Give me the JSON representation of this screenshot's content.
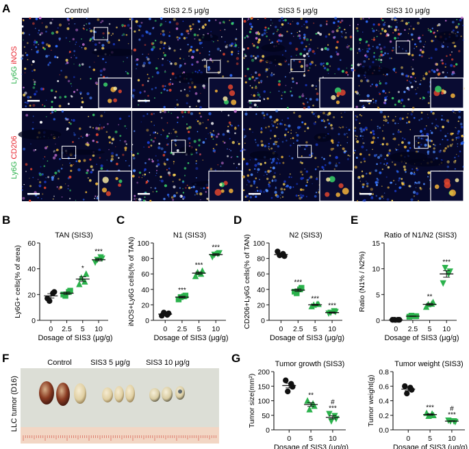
{
  "panel_letters": [
    "A",
    "B",
    "C",
    "D",
    "E",
    "F",
    "G"
  ],
  "panel_a": {
    "conditions": [
      "Control",
      "SIS3 2.5 μg/g",
      "SIS3 5 μg/g",
      "SIS3 10 μg/g"
    ],
    "rows": [
      {
        "stain_a": "Ly6G",
        "stain_b": "iNOS",
        "color_a": "#2bb24c",
        "color_b": "#e8202a"
      },
      {
        "stain_a": "Ly6G",
        "stain_b": "CD206",
        "color_a": "#2bb24c",
        "color_b": "#e8202a"
      }
    ]
  },
  "panel_f": {
    "labels": [
      "Control",
      "SIS3 5 μg/g",
      "SIS3 10 μg/g"
    ],
    "side_label": "LLC tumor (D16)"
  },
  "chart_data": [
    {
      "id": "B",
      "type": "scatter",
      "title": "TAN (SIS3)",
      "ylabel": "Ly6G+ cells(% of area)",
      "xlabel": "Dosage of SIS3 (μg/g)",
      "categories": [
        "0",
        "2.5",
        "5",
        "10"
      ],
      "ylim": [
        0,
        60
      ],
      "yticks": [
        "0",
        "20",
        "40",
        "60"
      ],
      "means": [
        19,
        21,
        32,
        47
      ],
      "points": [
        [
          17,
          22,
          15,
          21
        ],
        [
          20,
          23,
          19,
          22
        ],
        [
          28,
          36,
          33,
          30
        ],
        [
          45,
          48,
          47,
          49
        ]
      ],
      "significance": [
        "",
        "",
        "*",
        "***"
      ],
      "colors": [
        "#111111",
        "#2bb24c",
        "#2bb24c",
        "#2bb24c"
      ],
      "markers": [
        "circle",
        "square",
        "triangle",
        "triangle-down"
      ]
    },
    {
      "id": "C",
      "type": "scatter",
      "title": "N1 (SIS3)",
      "ylabel": "iNOS+Ly6G cells(% of TAN)",
      "xlabel": "Dosage of SIS3 (μg/g)",
      "categories": [
        "0",
        "2.5",
        "5",
        "10"
      ],
      "ylim": [
        0,
        100
      ],
      "yticks": [
        "0",
        "20",
        "40",
        "60",
        "80",
        "100"
      ],
      "means": [
        8,
        30,
        61,
        85
      ],
      "points": [
        [
          6,
          9,
          10,
          7
        ],
        [
          27,
          32,
          30,
          31
        ],
        [
          57,
          64,
          62,
          60
        ],
        [
          82,
          87,
          85,
          86
        ]
      ],
      "significance": [
        "",
        "***",
        "***",
        "***"
      ],
      "colors": [
        "#111111",
        "#2bb24c",
        "#2bb24c",
        "#2bb24c"
      ],
      "markers": [
        "circle",
        "square",
        "triangle",
        "triangle-down"
      ]
    },
    {
      "id": "D",
      "type": "scatter",
      "title": "N2 (SIS3)",
      "ylabel": "CD206+Ly6G cells(% of TAN)",
      "xlabel": "Dosage of SIS3 (μg/g)",
      "categories": [
        "0",
        "2.5",
        "5",
        "10"
      ],
      "ylim": [
        0,
        100
      ],
      "yticks": [
        "0",
        "20",
        "40",
        "60",
        "80",
        "100"
      ],
      "means": [
        85,
        39,
        20,
        10
      ],
      "points": [
        [
          89,
          83,
          84,
          86
        ],
        [
          37,
          42,
          35,
          40
        ],
        [
          18,
          21,
          20,
          21
        ],
        [
          9,
          11,
          10,
          12
        ]
      ],
      "significance": [
        "",
        "***",
        "***",
        "***"
      ],
      "colors": [
        "#111111",
        "#2bb24c",
        "#2bb24c",
        "#2bb24c"
      ],
      "markers": [
        "circle",
        "square",
        "triangle",
        "triangle-down"
      ]
    },
    {
      "id": "E",
      "type": "scatter",
      "title": "Ratio of N1/N2 (SIS3)",
      "ylabel": "Ratio (N1% / N2%)",
      "xlabel": "Dosage of SIS3 (μg/g)",
      "categories": [
        "0",
        "2.5",
        "5",
        "10"
      ],
      "ylim": [
        0,
        15
      ],
      "yticks": [
        "0",
        "5",
        "10",
        "15"
      ],
      "means": [
        0.1,
        0.8,
        3.1,
        9.0
      ],
      "points": [
        [
          0.1,
          0.1,
          0.1,
          0.1
        ],
        [
          0.7,
          0.8,
          0.9,
          0.8
        ],
        [
          2.6,
          3.5,
          3.1,
          3.2
        ],
        [
          7.2,
          9.5,
          10.2,
          9.0
        ]
      ],
      "significance": [
        "",
        "",
        "**",
        "***"
      ],
      "colors": [
        "#111111",
        "#2bb24c",
        "#2bb24c",
        "#2bb24c"
      ],
      "markers": [
        "circle",
        "square",
        "triangle",
        "triangle-down"
      ]
    },
    {
      "id": "G1",
      "type": "scatter",
      "title": "Tumor growth (SIS3)",
      "ylabel": "Tumor size(mm²)",
      "xlabel": "Dosage of SIS3 (μg/g)",
      "categories": [
        "0",
        "5",
        "10"
      ],
      "ylim": [
        0,
        200
      ],
      "yticks": [
        "0",
        "50",
        "100",
        "150",
        "200"
      ],
      "means": [
        152,
        87,
        43
      ],
      "points": [
        [
          170,
          148,
          132,
          158
        ],
        [
          100,
          82,
          70,
          90
        ],
        [
          55,
          38,
          30,
          48
        ]
      ],
      "significance": [
        "",
        "**",
        "#\n***"
      ],
      "colors": [
        "#111111",
        "#2bb24c",
        "#2bb24c"
      ],
      "markers": [
        "circle",
        "triangle",
        "triangle-down"
      ]
    },
    {
      "id": "G2",
      "type": "scatter",
      "title": "Tumor weight (SIS3)",
      "ylabel": "Tumor weight(g)",
      "xlabel": "Dosage of SIS3 (μg/g)",
      "categories": [
        "0",
        "5",
        "10"
      ],
      "ylim": [
        0,
        0.8
      ],
      "yticks": [
        "0.0",
        "0.2",
        "0.4",
        "0.6",
        "0.8"
      ],
      "means": [
        0.56,
        0.21,
        0.12
      ],
      "points": [
        [
          0.6,
          0.55,
          0.5,
          0.58
        ],
        [
          0.23,
          0.2,
          0.19,
          0.22
        ],
        [
          0.13,
          0.11,
          0.12,
          0.12
        ]
      ],
      "significance": [
        "",
        "***",
        "#\n***"
      ],
      "colors": [
        "#111111",
        "#2bb24c",
        "#2bb24c"
      ],
      "markers": [
        "circle",
        "triangle",
        "triangle-down"
      ]
    }
  ]
}
